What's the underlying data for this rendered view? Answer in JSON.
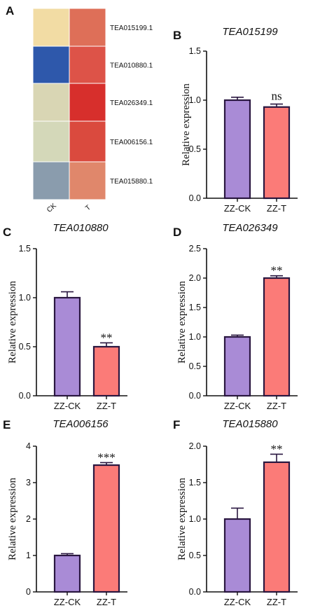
{
  "panel_letters": {
    "A": "A",
    "B": "B",
    "C": "C",
    "D": "D",
    "E": "E",
    "F": "F"
  },
  "chart_data": [
    {
      "panel": "A",
      "type": "heatmap",
      "rows": [
        "TEA015199.1",
        "TEA010880.1",
        "TEA026349.1",
        "TEA006156.1",
        "TEA015880.1"
      ],
      "columns": [
        "CK",
        "T"
      ],
      "cell_colors": [
        [
          "#f2dca4",
          "#de6f58"
        ],
        [
          "#2e58ab",
          "#dd5348"
        ],
        [
          "#d9d6b4",
          "#d72f2c"
        ],
        [
          "#d4d8b9",
          "#da4a3e"
        ],
        [
          "#8a9cad",
          "#e0876b"
        ]
      ]
    },
    {
      "panel": "B",
      "type": "bar",
      "title": "TEA015199",
      "categories": [
        "ZZ-CK",
        "ZZ-T"
      ],
      "values": [
        1.0,
        0.93
      ],
      "errors": [
        0.03,
        0.03
      ],
      "significance": [
        "",
        "ns"
      ],
      "ylabel": "Relative expression",
      "ylim": [
        0,
        1.5
      ],
      "yticks": [
        "0.0",
        "0.5",
        "1.0",
        "1.5"
      ],
      "ytick_values": [
        0,
        0.5,
        1.0,
        1.5
      ],
      "colors": [
        "#a98bd6",
        "#fb7b78"
      ]
    },
    {
      "panel": "C",
      "type": "bar",
      "title": "TEA010880",
      "categories": [
        "ZZ-CK",
        "ZZ-T"
      ],
      "values": [
        1.0,
        0.5
      ],
      "errors": [
        0.06,
        0.04
      ],
      "significance": [
        "",
        "**"
      ],
      "ylabel": "Relative expression",
      "ylim": [
        0,
        1.5
      ],
      "yticks": [
        "0.0",
        "0.5",
        "1.0",
        "1.5"
      ],
      "ytick_values": [
        0,
        0.5,
        1.0,
        1.5
      ],
      "colors": [
        "#a98bd6",
        "#fb7b78"
      ]
    },
    {
      "panel": "D",
      "type": "bar",
      "title": "TEA026349",
      "categories": [
        "ZZ-CK",
        "ZZ-T"
      ],
      "values": [
        1.0,
        2.0
      ],
      "errors": [
        0.03,
        0.04
      ],
      "significance": [
        "",
        "**"
      ],
      "ylabel": "Relative expression",
      "ylim": [
        0,
        2.5
      ],
      "yticks": [
        "0.0",
        "0.5",
        "1.0",
        "1.5",
        "2.0",
        "2.5"
      ],
      "ytick_values": [
        0,
        0.5,
        1.0,
        1.5,
        2.0,
        2.5
      ],
      "colors": [
        "#a98bd6",
        "#fb7b78"
      ]
    },
    {
      "panel": "E",
      "type": "bar",
      "title": "TEA006156",
      "categories": [
        "ZZ-CK",
        "ZZ-T"
      ],
      "values": [
        1.0,
        3.48
      ],
      "errors": [
        0.05,
        0.07
      ],
      "significance": [
        "",
        "***"
      ],
      "ylabel": "Relative expression",
      "ylim": [
        0,
        4
      ],
      "yticks": [
        "0",
        "1",
        "2",
        "3",
        "4"
      ],
      "ytick_values": [
        0,
        1,
        2,
        3,
        4
      ],
      "colors": [
        "#a98bd6",
        "#fb7b78"
      ]
    },
    {
      "panel": "F",
      "type": "bar",
      "title": "TEA015880",
      "categories": [
        "ZZ-CK",
        "ZZ-T"
      ],
      "values": [
        1.0,
        1.78
      ],
      "errors": [
        0.15,
        0.11
      ],
      "significance": [
        "",
        "**"
      ],
      "ylabel": "Relative expression",
      "ylim": [
        0,
        2.0
      ],
      "yticks": [
        "0.0",
        "0.5",
        "1.0",
        "1.5",
        "2.0"
      ],
      "ytick_values": [
        0,
        0.5,
        1.0,
        1.5,
        2.0
      ],
      "colors": [
        "#a98bd6",
        "#fb7b78"
      ]
    }
  ]
}
